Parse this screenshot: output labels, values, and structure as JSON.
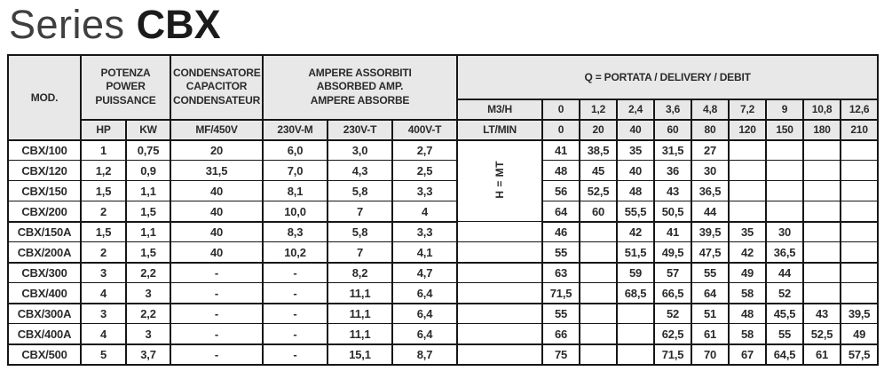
{
  "title": {
    "light": "Series",
    "bold": "CBX"
  },
  "table": {
    "headers": {
      "mod": "MOD.",
      "power": "POTENZA\nPOWER\nPUISSANCE",
      "capacitor": "CONDENSATORE\nCAPACITOR\nCONDENSATEUR",
      "ampere": "AMPERE ASSORBITI\nABSORBED AMP.\nAMPERE ABSORBE",
      "q_title": "Q = PORTATA / DELIVERY / DEBIT",
      "hp": "HP",
      "kw": "KW",
      "mf": "MF/450V",
      "v230m": "230V-M",
      "v230t": "230V-T",
      "v400t": "400V-T",
      "m3h": "M3/H",
      "ltmin": "LT/MIN",
      "h_mt": "H = MT",
      "m3h_values": [
        "0",
        "1,2",
        "2,4",
        "3,6",
        "4,8",
        "7,2",
        "9",
        "10,8",
        "12,6"
      ],
      "ltmin_values": [
        "0",
        "20",
        "40",
        "60",
        "80",
        "120",
        "150",
        "180",
        "210"
      ]
    },
    "rows": [
      {
        "mod": "CBX/100",
        "hp": "1",
        "kw": "0,75",
        "mf": "20",
        "v230m": "6,0",
        "v230t": "3,0",
        "v400t": "2,7",
        "q": [
          "41",
          "38,5",
          "35",
          "31,5",
          "27",
          "",
          "",
          "",
          ""
        ]
      },
      {
        "mod": "CBX/120",
        "hp": "1,2",
        "kw": "0,9",
        "mf": "31,5",
        "v230m": "7,0",
        "v230t": "4,3",
        "v400t": "2,5",
        "q": [
          "48",
          "45",
          "40",
          "36",
          "30",
          "",
          "",
          "",
          ""
        ]
      },
      {
        "mod": "CBX/150",
        "hp": "1,5",
        "kw": "1,1",
        "mf": "40",
        "v230m": "8,1",
        "v230t": "5,8",
        "v400t": "3,3",
        "q": [
          "56",
          "52,5",
          "48",
          "43",
          "36,5",
          "",
          "",
          "",
          ""
        ]
      },
      {
        "mod": "CBX/200",
        "hp": "2",
        "kw": "1,5",
        "mf": "40",
        "v230m": "10,0",
        "v230t": "7",
        "v400t": "4",
        "q": [
          "64",
          "60",
          "55,5",
          "50,5",
          "44",
          "",
          "",
          "",
          ""
        ]
      },
      {
        "mod": "CBX/150A",
        "hp": "1,5",
        "kw": "1,1",
        "mf": "40",
        "v230m": "8,3",
        "v230t": "5,8",
        "v400t": "3,3",
        "q": [
          "46",
          "",
          "42",
          "41",
          "39,5",
          "35",
          "30",
          "",
          ""
        ]
      },
      {
        "mod": "CBX/200A",
        "hp": "2",
        "kw": "1,5",
        "mf": "40",
        "v230m": "10,2",
        "v230t": "7",
        "v400t": "4,1",
        "q": [
          "55",
          "",
          "51,5",
          "49,5",
          "47,5",
          "42",
          "36,5",
          "",
          ""
        ]
      },
      {
        "mod": "CBX/300",
        "hp": "3",
        "kw": "2,2",
        "mf": "-",
        "v230m": "-",
        "v230t": "8,2",
        "v400t": "4,7",
        "q": [
          "63",
          "",
          "59",
          "57",
          "55",
          "49",
          "44",
          "",
          ""
        ]
      },
      {
        "mod": "CBX/400",
        "hp": "4",
        "kw": "3",
        "mf": "-",
        "v230m": "-",
        "v230t": "11,1",
        "v400t": "6,4",
        "q": [
          "71,5",
          "",
          "68,5",
          "66,5",
          "64",
          "58",
          "52",
          "",
          ""
        ]
      },
      {
        "mod": "CBX/300A",
        "hp": "3",
        "kw": "2,2",
        "mf": "-",
        "v230m": "-",
        "v230t": "11,1",
        "v400t": "6,4",
        "q": [
          "55",
          "",
          "",
          "52",
          "51",
          "48",
          "45,5",
          "43",
          "39,5"
        ]
      },
      {
        "mod": "CBX/400A",
        "hp": "4",
        "kw": "3",
        "mf": "-",
        "v230m": "-",
        "v230t": "11,1",
        "v400t": "6,4",
        "q": [
          "66",
          "",
          "",
          "62,5",
          "61",
          "58",
          "55",
          "52,5",
          "49"
        ]
      },
      {
        "mod": "CBX/500",
        "hp": "5",
        "kw": "3,7",
        "mf": "-",
        "v230m": "-",
        "v230t": "15,1",
        "v400t": "8,7",
        "q": [
          "75",
          "",
          "",
          "71,5",
          "70",
          "67",
          "64,5",
          "61",
          "57,5"
        ]
      }
    ]
  }
}
